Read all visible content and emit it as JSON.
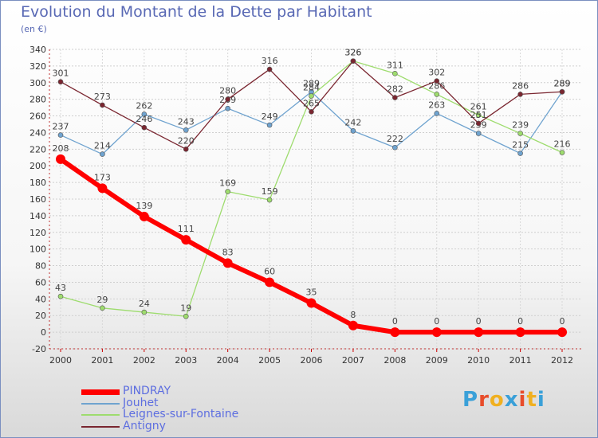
{
  "title": "Evolution du Montant de la Dette par Habitant",
  "subtitle": "(en €)",
  "logo": {
    "text": "Proxiti",
    "colors": [
      "#3aa0d8",
      "#e84c2a",
      "#f0b020",
      "#3aa0d8",
      "#e84c2a",
      "#f0b020",
      "#3aa0d8"
    ]
  },
  "chart_data": {
    "type": "line",
    "xlabel": "",
    "ylabel": "",
    "x": [
      "2000",
      "2001",
      "2002",
      "2003",
      "2004",
      "2005",
      "2006",
      "2007",
      "2008",
      "2009",
      "2010",
      "2011",
      "2012"
    ],
    "ylim": [
      -20,
      340
    ],
    "yticks": [
      -20,
      0,
      20,
      40,
      60,
      80,
      100,
      120,
      140,
      160,
      180,
      200,
      220,
      240,
      260,
      280,
      300,
      320,
      340
    ],
    "grid": true,
    "legend_position": "bottom-left",
    "series": [
      {
        "name": "PINDRAY",
        "color": "#ff0000",
        "values": [
          208,
          173,
          139,
          111,
          83,
          60,
          35,
          8,
          0,
          0,
          0,
          0,
          0
        ]
      },
      {
        "name": "Jouhet",
        "color": "#6fa3cf",
        "values": [
          237,
          214,
          262,
          243,
          269,
          249,
          289,
          242,
          222,
          263,
          239,
          215,
          289
        ]
      },
      {
        "name": "Leignes-sur-Fontaine",
        "color": "#9edc6e",
        "values": [
          43,
          29,
          24,
          19,
          169,
          159,
          284,
          326,
          311,
          286,
          261,
          239,
          216
        ]
      },
      {
        "name": "Antigny",
        "color": "#7a2630",
        "values": [
          301,
          273,
          246,
          220,
          280,
          316,
          265,
          326,
          282,
          302,
          251,
          286,
          289
        ]
      }
    ]
  }
}
